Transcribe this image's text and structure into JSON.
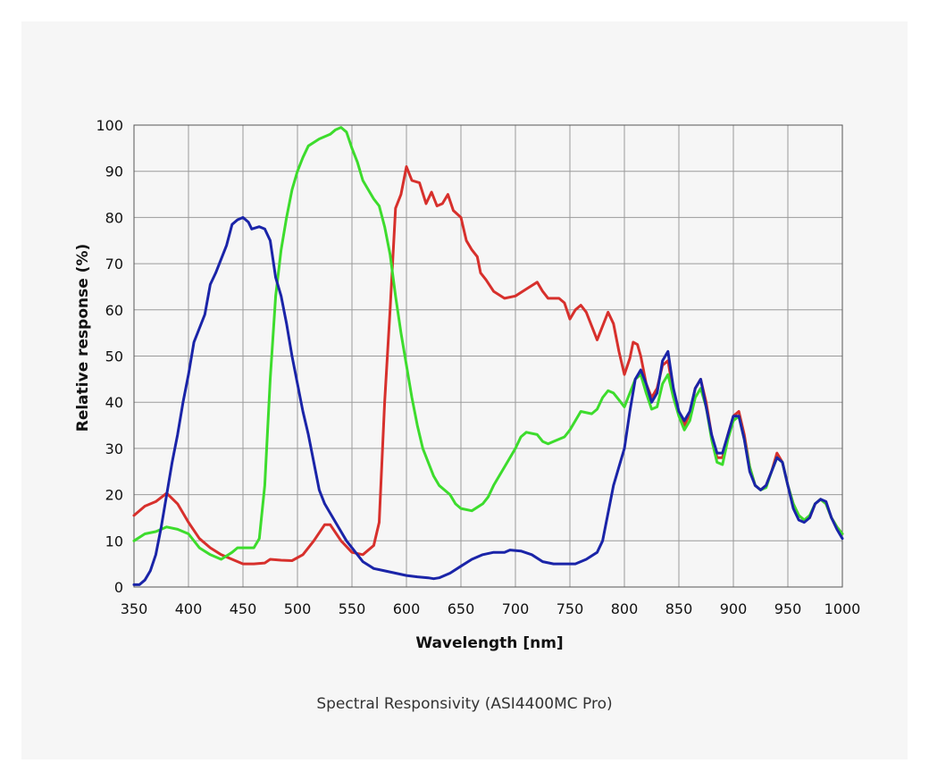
{
  "chart_data": {
    "type": "line",
    "title": "",
    "caption": "Spectral Responsivity (ASI4400MC Pro)",
    "xlabel": "Wavelength [nm]",
    "ylabel": "Relative response (%)",
    "xlim": [
      350,
      1000
    ],
    "ylim": [
      0,
      100
    ],
    "xticks": [
      350,
      400,
      450,
      500,
      550,
      600,
      650,
      700,
      750,
      800,
      850,
      900,
      950,
      1000
    ],
    "yticks": [
      0,
      10,
      20,
      30,
      40,
      50,
      60,
      70,
      80,
      90,
      100
    ],
    "grid": true,
    "legend": "none",
    "series": [
      {
        "color": "#d7302c",
        "points": [
          [
            350,
            15.5
          ],
          [
            360,
            17.5
          ],
          [
            370,
            18.5
          ],
          [
            380,
            20.3
          ],
          [
            390,
            18
          ],
          [
            400,
            14
          ],
          [
            410,
            10.5
          ],
          [
            420,
            8.5
          ],
          [
            430,
            7
          ],
          [
            440,
            6
          ],
          [
            450,
            5
          ],
          [
            460,
            5
          ],
          [
            470,
            5.2
          ],
          [
            475,
            6
          ],
          [
            485,
            5.8
          ],
          [
            495,
            5.7
          ],
          [
            505,
            7
          ],
          [
            515,
            10
          ],
          [
            525,
            13.5
          ],
          [
            530,
            13.5
          ],
          [
            540,
            10
          ],
          [
            550,
            7.5
          ],
          [
            560,
            7
          ],
          [
            570,
            9
          ],
          [
            575,
            14
          ],
          [
            580,
            40
          ],
          [
            585,
            60
          ],
          [
            590,
            82
          ],
          [
            595,
            85
          ],
          [
            600,
            91
          ],
          [
            605,
            88
          ],
          [
            612,
            87.5
          ],
          [
            618,
            83
          ],
          [
            623,
            85.5
          ],
          [
            628,
            82.5
          ],
          [
            633,
            83
          ],
          [
            638,
            85
          ],
          [
            643,
            81.5
          ],
          [
            650,
            80
          ],
          [
            655,
            75
          ],
          [
            660,
            73
          ],
          [
            665,
            71.5
          ],
          [
            668,
            68
          ],
          [
            673,
            66.5
          ],
          [
            680,
            64
          ],
          [
            690,
            62.5
          ],
          [
            700,
            63
          ],
          [
            710,
            64.5
          ],
          [
            720,
            66
          ],
          [
            725,
            64
          ],
          [
            730,
            62.5
          ],
          [
            740,
            62.5
          ],
          [
            745,
            61.5
          ],
          [
            750,
            58
          ],
          [
            755,
            60
          ],
          [
            760,
            61
          ],
          [
            765,
            59.5
          ],
          [
            770,
            56.5
          ],
          [
            775,
            53.5
          ],
          [
            780,
            56.5
          ],
          [
            785,
            59.5
          ],
          [
            790,
            57
          ],
          [
            795,
            51
          ],
          [
            800,
            46
          ],
          [
            805,
            49.5
          ],
          [
            808,
            53
          ],
          [
            812,
            52.5
          ],
          [
            815,
            50
          ],
          [
            820,
            44
          ],
          [
            825,
            41
          ],
          [
            830,
            43
          ],
          [
            835,
            48
          ],
          [
            840,
            49
          ],
          [
            845,
            42
          ],
          [
            850,
            38
          ],
          [
            855,
            35
          ],
          [
            860,
            37.5
          ],
          [
            865,
            43
          ],
          [
            870,
            45
          ],
          [
            875,
            40
          ],
          [
            880,
            33
          ],
          [
            885,
            28
          ],
          [
            890,
            28
          ],
          [
            895,
            33
          ],
          [
            900,
            37
          ],
          [
            905,
            38
          ],
          [
            910,
            33
          ],
          [
            915,
            26
          ],
          [
            920,
            22
          ],
          [
            925,
            21
          ],
          [
            930,
            22
          ],
          [
            935,
            25
          ],
          [
            940,
            29
          ],
          [
            945,
            27
          ],
          [
            950,
            22
          ],
          [
            955,
            18
          ],
          [
            960,
            15.5
          ],
          [
            965,
            14.5
          ],
          [
            970,
            15
          ],
          [
            975,
            18
          ],
          [
            980,
            19
          ],
          [
            985,
            18
          ],
          [
            990,
            15
          ],
          [
            995,
            13
          ],
          [
            1000,
            11.5
          ]
        ]
      },
      {
        "color": "#3ddc2d",
        "points": [
          [
            350,
            10
          ],
          [
            360,
            11.5
          ],
          [
            370,
            12
          ],
          [
            380,
            13
          ],
          [
            390,
            12.5
          ],
          [
            400,
            11.5
          ],
          [
            410,
            8.5
          ],
          [
            420,
            7
          ],
          [
            430,
            6
          ],
          [
            440,
            7.5
          ],
          [
            445,
            8.5
          ],
          [
            455,
            8.5
          ],
          [
            460,
            8.5
          ],
          [
            465,
            10.5
          ],
          [
            470,
            22
          ],
          [
            475,
            45
          ],
          [
            480,
            63
          ],
          [
            485,
            73
          ],
          [
            490,
            80
          ],
          [
            495,
            86
          ],
          [
            500,
            90
          ],
          [
            505,
            93
          ],
          [
            510,
            95.5
          ],
          [
            520,
            97
          ],
          [
            525,
            97.5
          ],
          [
            530,
            98
          ],
          [
            535,
            99
          ],
          [
            540,
            99.5
          ],
          [
            545,
            98.5
          ],
          [
            550,
            95
          ],
          [
            555,
            92
          ],
          [
            560,
            88
          ],
          [
            565,
            86
          ],
          [
            570,
            84
          ],
          [
            575,
            82.5
          ],
          [
            580,
            78
          ],
          [
            585,
            72
          ],
          [
            590,
            63
          ],
          [
            595,
            55
          ],
          [
            600,
            48
          ],
          [
            605,
            41
          ],
          [
            610,
            35
          ],
          [
            615,
            30
          ],
          [
            620,
            27
          ],
          [
            625,
            24
          ],
          [
            630,
            22
          ],
          [
            640,
            20
          ],
          [
            645,
            18
          ],
          [
            650,
            17
          ],
          [
            660,
            16.5
          ],
          [
            670,
            18
          ],
          [
            675,
            19.5
          ],
          [
            680,
            22
          ],
          [
            690,
            26
          ],
          [
            700,
            30
          ],
          [
            705,
            32.5
          ],
          [
            710,
            33.5
          ],
          [
            720,
            33
          ],
          [
            725,
            31.5
          ],
          [
            730,
            31
          ],
          [
            735,
            31.5
          ],
          [
            745,
            32.5
          ],
          [
            750,
            34
          ],
          [
            755,
            36
          ],
          [
            760,
            38
          ],
          [
            770,
            37.5
          ],
          [
            775,
            38.5
          ],
          [
            780,
            41
          ],
          [
            785,
            42.5
          ],
          [
            790,
            42
          ],
          [
            795,
            40.5
          ],
          [
            800,
            39
          ],
          [
            805,
            42
          ],
          [
            810,
            45
          ],
          [
            815,
            46
          ],
          [
            820,
            42
          ],
          [
            825,
            38.5
          ],
          [
            830,
            39
          ],
          [
            835,
            44
          ],
          [
            840,
            46
          ],
          [
            845,
            41
          ],
          [
            850,
            37
          ],
          [
            855,
            34
          ],
          [
            860,
            36
          ],
          [
            865,
            41
          ],
          [
            870,
            43
          ],
          [
            875,
            39
          ],
          [
            880,
            32
          ],
          [
            885,
            27
          ],
          [
            890,
            26.5
          ],
          [
            895,
            32
          ],
          [
            900,
            36
          ],
          [
            905,
            37
          ],
          [
            910,
            32
          ],
          [
            915,
            26
          ],
          [
            920,
            22
          ],
          [
            925,
            21
          ],
          [
            930,
            21.5
          ],
          [
            935,
            25
          ],
          [
            940,
            28
          ],
          [
            945,
            27
          ],
          [
            950,
            22
          ],
          [
            955,
            18
          ],
          [
            960,
            15.5
          ],
          [
            965,
            14.5
          ],
          [
            970,
            15.5
          ],
          [
            975,
            18
          ],
          [
            980,
            19
          ],
          [
            985,
            18
          ],
          [
            990,
            15
          ],
          [
            995,
            13
          ],
          [
            1000,
            11.5
          ]
        ]
      },
      {
        "color": "#1a24a8",
        "points": [
          [
            350,
            0.5
          ],
          [
            355,
            0.5
          ],
          [
            360,
            1.5
          ],
          [
            365,
            3.5
          ],
          [
            370,
            7
          ],
          [
            375,
            13
          ],
          [
            380,
            20
          ],
          [
            385,
            27
          ],
          [
            390,
            33
          ],
          [
            395,
            40
          ],
          [
            400,
            46
          ],
          [
            405,
            53
          ],
          [
            410,
            56
          ],
          [
            415,
            59
          ],
          [
            420,
            65.5
          ],
          [
            425,
            68
          ],
          [
            430,
            71
          ],
          [
            435,
            74
          ],
          [
            440,
            78.5
          ],
          [
            445,
            79.5
          ],
          [
            450,
            80
          ],
          [
            455,
            79
          ],
          [
            458,
            77.5
          ],
          [
            465,
            78
          ],
          [
            470,
            77.5
          ],
          [
            475,
            75
          ],
          [
            480,
            67
          ],
          [
            485,
            63
          ],
          [
            490,
            57
          ],
          [
            495,
            50
          ],
          [
            500,
            44
          ],
          [
            505,
            38
          ],
          [
            510,
            33
          ],
          [
            515,
            27
          ],
          [
            520,
            21
          ],
          [
            525,
            18
          ],
          [
            530,
            16
          ],
          [
            535,
            14
          ],
          [
            540,
            12
          ],
          [
            545,
            10
          ],
          [
            550,
            8.5
          ],
          [
            555,
            7
          ],
          [
            560,
            5.5
          ],
          [
            570,
            4
          ],
          [
            580,
            3.5
          ],
          [
            590,
            3
          ],
          [
            600,
            2.5
          ],
          [
            610,
            2.2
          ],
          [
            620,
            2
          ],
          [
            625,
            1.8
          ],
          [
            630,
            2
          ],
          [
            640,
            3
          ],
          [
            650,
            4.5
          ],
          [
            660,
            6
          ],
          [
            670,
            7
          ],
          [
            680,
            7.5
          ],
          [
            690,
            7.5
          ],
          [
            695,
            8
          ],
          [
            705,
            7.8
          ],
          [
            715,
            7
          ],
          [
            725,
            5.5
          ],
          [
            735,
            5
          ],
          [
            745,
            5
          ],
          [
            755,
            5
          ],
          [
            765,
            6
          ],
          [
            775,
            7.5
          ],
          [
            780,
            10
          ],
          [
            785,
            16
          ],
          [
            790,
            22
          ],
          [
            795,
            26
          ],
          [
            800,
            30
          ],
          [
            805,
            38
          ],
          [
            810,
            45
          ],
          [
            815,
            47
          ],
          [
            820,
            44
          ],
          [
            825,
            40
          ],
          [
            830,
            42
          ],
          [
            835,
            49
          ],
          [
            840,
            51
          ],
          [
            845,
            43
          ],
          [
            850,
            38
          ],
          [
            855,
            36
          ],
          [
            860,
            38
          ],
          [
            865,
            43
          ],
          [
            870,
            45
          ],
          [
            875,
            39
          ],
          [
            880,
            33
          ],
          [
            885,
            29
          ],
          [
            890,
            29
          ],
          [
            895,
            33
          ],
          [
            900,
            37
          ],
          [
            905,
            37
          ],
          [
            910,
            32
          ],
          [
            915,
            25
          ],
          [
            920,
            22
          ],
          [
            925,
            21
          ],
          [
            930,
            22
          ],
          [
            935,
            25
          ],
          [
            940,
            28
          ],
          [
            945,
            27
          ],
          [
            950,
            22
          ],
          [
            955,
            17
          ],
          [
            960,
            14.5
          ],
          [
            965,
            14
          ],
          [
            970,
            15
          ],
          [
            975,
            18
          ],
          [
            980,
            19
          ],
          [
            985,
            18.5
          ],
          [
            990,
            15
          ],
          [
            995,
            12.5
          ],
          [
            1000,
            10.5
          ]
        ]
      }
    ]
  }
}
